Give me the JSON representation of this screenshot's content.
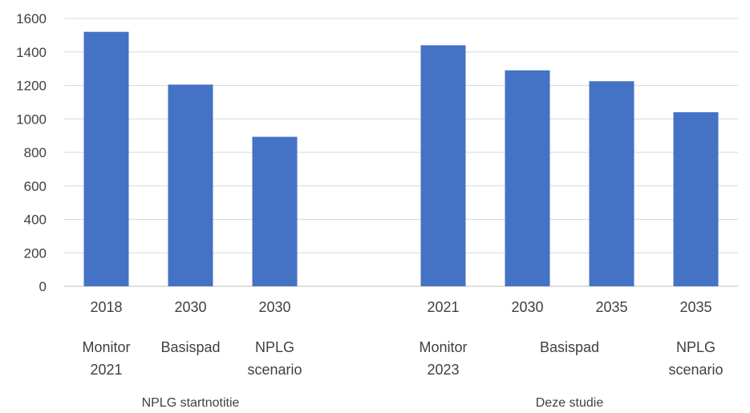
{
  "chart_data": {
    "type": "bar",
    "ylim": [
      0,
      1600
    ],
    "yticks": [
      0,
      200,
      400,
      600,
      800,
      1000,
      1200,
      1400,
      1600
    ],
    "grid": true,
    "legend": "none",
    "colors": {
      "bar": "#4472c4",
      "grid": "#d9d9d9",
      "text": "#404040"
    },
    "categories": [
      {
        "year": "2018",
        "label": [
          "Monitor",
          "2021"
        ],
        "value": 1520
      },
      {
        "year": "2030",
        "label": [
          "Basispad"
        ],
        "value": 1205
      },
      {
        "year": "2030",
        "label": [
          "NPLG",
          "scenario"
        ],
        "value": 893
      },
      {
        "year": "",
        "label": [],
        "value": null
      },
      {
        "year": "2021",
        "label": [
          "Monitor",
          "2023"
        ],
        "value": 1440
      },
      {
        "year": "2030",
        "label": [],
        "value": 1290
      },
      {
        "year": "2035",
        "label": [],
        "value": 1225
      },
      {
        "year": "2035",
        "label": [
          "NPLG",
          "scenario"
        ],
        "value": 1040
      }
    ],
    "spanning_labels": [
      {
        "text": "Basispad",
        "from": 5,
        "to": 6
      }
    ],
    "groups": [
      {
        "name": "NPLG startnotitie",
        "from": 0,
        "to": 2
      },
      {
        "name": "Deze studie",
        "from": 4,
        "to": 7
      }
    ]
  }
}
